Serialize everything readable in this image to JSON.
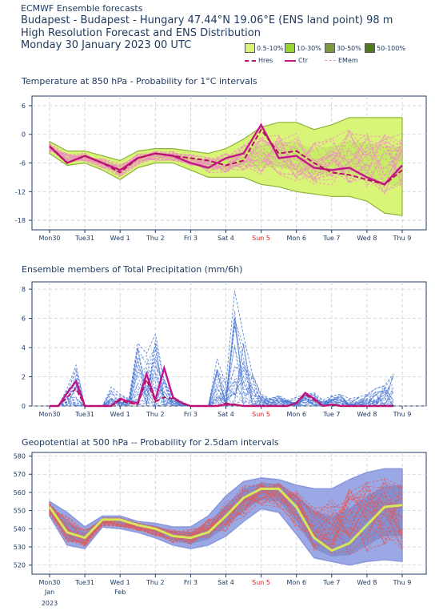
{
  "header": {
    "line1": "ECMWF Ensemble forecasts",
    "line2": "Budapest - Budapest - Hungary 47.44°N 19.06°E (ENS land point) 98 m",
    "line3": "High Resolution Forecast and ENS Distribution",
    "line4": "Monday 30 January 2023 00 UTC"
  },
  "legend": {
    "prob": [
      {
        "label": "0.5-10%",
        "color": "#d8f577"
      },
      {
        "label": "10-30%",
        "color": "#9ad62a"
      },
      {
        "label": "30-50%",
        "color": "#7a9c3a"
      },
      {
        "label": "50-100%",
        "color": "#4f7a1c"
      }
    ],
    "lines": [
      {
        "label": "Hres",
        "color": "#b5135f",
        "style": "dashed"
      },
      {
        "label": "Ctr",
        "color": "#c4168a",
        "style": "solid"
      },
      {
        "label": "EMem",
        "color": "#f08cc4",
        "style": "dashed"
      }
    ]
  },
  "x_ticks": [
    "Mon30",
    "Tue31",
    "Wed 1",
    "Thu 2",
    "Fri 3",
    "Sat 4",
    "Sun 5",
    "Mon 6",
    "Tue 7",
    "Wed 8",
    "Thu 9"
  ],
  "x_sub": {
    "jan": "Jan",
    "year": "2023",
    "feb": "Feb"
  },
  "colors": {
    "weekend_sun": "#e02020",
    "temp_band": "#d8f577",
    "temp_edge": "#8cb33a",
    "ens_line": "#f08cc4",
    "hres": "#b5135f",
    "ctr": "#c4168a",
    "precip_members": "#4a78d6",
    "geo_band": "#9aa8e6",
    "geo_core": "#7a7fc0",
    "geo_members": "#e05a5a",
    "geo_mean": "#d6e85a"
  },
  "chart_data": [
    {
      "type": "area",
      "title": "Temperature at 850 hPa - Probability for 1°C intervals",
      "ylim": [
        -20,
        8
      ],
      "yticks": [
        6,
        0,
        -6,
        -12,
        -18
      ],
      "x": [
        0,
        0.5,
        1,
        1.5,
        2,
        2.5,
        3,
        3.5,
        4,
        4.5,
        5,
        5.5,
        6,
        6.5,
        7,
        7.5,
        8,
        8.5,
        9,
        9.5,
        10
      ],
      "series": [
        {
          "name": "Hres",
          "values": [
            -2.5,
            -6,
            -4.5,
            -6,
            -8,
            -5,
            -4,
            -4.5,
            -5,
            -5.5,
            -6.5,
            -5.5,
            1,
            -4,
            -3.5,
            -6,
            -8,
            -8.5,
            -9.5,
            -10.5,
            -7.5
          ]
        },
        {
          "name": "Ctr",
          "values": [
            -2.5,
            -6,
            -4.5,
            -6,
            -7.5,
            -5,
            -4,
            -4.5,
            -6,
            -7,
            -5,
            -4,
            2,
            -5,
            -4.5,
            -7,
            -7.5,
            -7,
            -9,
            -10.5,
            -6.5
          ]
        },
        {
          "name": "band_upper",
          "values": [
            -1.5,
            -3.5,
            -3.5,
            -4.5,
            -5.5,
            -3.5,
            -3,
            -3,
            -3.5,
            -4,
            -3,
            -1,
            1.5,
            2.5,
            2.5,
            1,
            2,
            3.5,
            3.5,
            3.5,
            3.5
          ]
        },
        {
          "name": "band_lower",
          "values": [
            -4,
            -6.5,
            -6,
            -7.5,
            -9.5,
            -7,
            -6,
            -6,
            -7.5,
            -9,
            -9,
            -9,
            -10.5,
            -11,
            -12,
            -12.5,
            -13,
            -13,
            -14,
            -16.5,
            -17
          ]
        }
      ]
    },
    {
      "type": "line",
      "title": "Ensemble members of Total Precipitation (mm/6h)",
      "ylim": [
        0,
        8.5
      ],
      "yticks": [
        8,
        6,
        4,
        2,
        0
      ],
      "x": [
        0,
        0.25,
        0.5,
        0.75,
        1,
        1.25,
        1.5,
        1.75,
        2,
        2.25,
        2.5,
        2.75,
        3,
        3.25,
        3.5,
        3.75,
        4,
        4.25,
        4.5,
        4.75,
        5,
        5.25,
        5.5,
        5.75,
        6,
        6.25,
        6.5,
        6.75,
        7,
        7.25,
        7.5,
        7.75,
        8,
        8.25,
        8.5,
        8.75,
        9,
        9.25,
        9.5,
        9.75
      ],
      "series": [
        {
          "name": "Hres",
          "values": [
            0,
            0,
            0.6,
            1.2,
            0,
            0,
            0,
            0,
            0.4,
            0.2,
            0.1,
            1.8,
            0.3,
            0.6,
            0.5,
            0.2,
            0,
            0,
            0,
            0,
            0.2,
            0.1,
            0,
            0,
            0,
            0,
            0,
            0,
            0.2,
            0.8,
            0.4,
            0,
            0.1,
            0,
            0,
            0,
            0,
            0,
            0,
            0
          ]
        },
        {
          "name": "Ctr",
          "values": [
            0,
            0,
            0.9,
            1.7,
            0,
            0,
            0,
            0,
            0.5,
            0.3,
            0.2,
            2.2,
            0.4,
            2.6,
            0.6,
            0.2,
            0,
            0,
            0,
            0,
            0.1,
            0.1,
            0,
            0,
            0,
            0,
            0,
            0,
            0.2,
            0.9,
            0.5,
            0,
            0.1,
            0,
            0,
            0,
            0,
            0,
            0,
            0
          ]
        },
        {
          "name": "members_max",
          "values": [
            0,
            0,
            1.2,
            2.8,
            0,
            0,
            0,
            1.3,
            0.8,
            0.5,
            4.3,
            3.6,
            4.9,
            1.8,
            0.6,
            0.3,
            0,
            0,
            0,
            3.2,
            1.5,
            7.9,
            4.8,
            2.2,
            0.8,
            0.5,
            0.7,
            0.4,
            0.6,
            0.8,
            0.9,
            0.4,
            0.7,
            0.8,
            0.5,
            0.6,
            0.8,
            1.2,
            1.4,
            2.2
          ]
        }
      ]
    },
    {
      "type": "area",
      "title": "Geopotential at 500 hPa -- Probability for 2.5dam intervals",
      "ylim": [
        515,
        582
      ],
      "yticks": [
        580,
        570,
        560,
        550,
        540,
        530,
        520
      ],
      "x": [
        0,
        0.5,
        1,
        1.5,
        2,
        2.5,
        3,
        3.5,
        4,
        4.5,
        5,
        5.5,
        6,
        6.5,
        7,
        7.5,
        8,
        8.5,
        9,
        9.5,
        10
      ],
      "series": [
        {
          "name": "mean",
          "values": [
            552,
            538,
            535,
            545,
            545,
            542,
            540,
            536,
            535,
            538,
            547,
            557,
            562,
            562,
            552,
            535,
            528,
            532,
            542,
            552,
            553
          ]
        },
        {
          "name": "band_upper",
          "values": [
            555,
            549,
            541,
            547,
            547,
            544,
            543,
            541,
            541,
            547,
            558,
            566,
            568,
            567,
            564,
            562,
            562,
            567,
            571,
            573,
            573
          ]
        },
        {
          "name": "band_lower",
          "values": [
            547,
            531,
            529,
            541,
            540,
            538,
            535,
            531,
            529,
            531,
            536,
            544,
            551,
            549,
            537,
            524,
            522,
            520,
            522,
            523,
            522
          ]
        }
      ]
    }
  ],
  "panels": {
    "temp_title": "Temperature at 850 hPa - Probability for 1°C intervals",
    "precip_title": "Ensemble members of Total Precipitation (mm/6h)",
    "geo_title": "Geopotential at 500 hPa -- Probability for 2.5dam intervals"
  }
}
